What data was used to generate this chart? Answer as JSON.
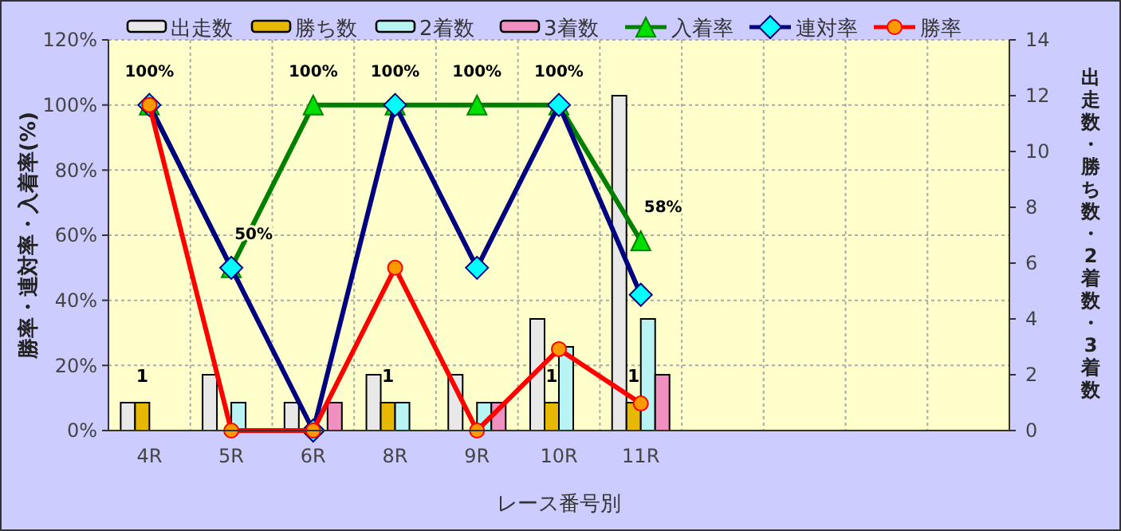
{
  "chart_data": {
    "type": "bar",
    "categories": [
      "4R",
      "5R",
      "6R",
      "8R",
      "9R",
      "10R",
      "11R",
      null,
      null,
      null,
      null
    ],
    "xlabel": "レース番号別",
    "ylabel": "勝率・連対率・入着率(%)",
    "y2label": "出走数・勝ち数・2着数・3着数",
    "ylim": [
      0,
      120
    ],
    "yticks": [
      {
        "value": 0,
        "label": "0%"
      },
      {
        "value": 20,
        "label": "20%"
      },
      {
        "value": 40,
        "label": "40%"
      },
      {
        "value": 60,
        "label": "60%"
      },
      {
        "value": 80,
        "label": "80%"
      },
      {
        "value": 100,
        "label": "100%"
      },
      {
        "value": 120,
        "label": "120%"
      }
    ],
    "y2lim": [
      0,
      14
    ],
    "y2ticks": [
      0,
      2,
      4,
      6,
      8,
      10,
      12,
      14
    ],
    "grid": true,
    "legend": "top",
    "series": [
      {
        "name": "出走数",
        "axis": "y2",
        "color": "#e8e8e8",
        "values": [
          1,
          2,
          1,
          2,
          2,
          4,
          12,
          null,
          null,
          null,
          null
        ]
      },
      {
        "name": "勝ち数",
        "axis": "y2",
        "color": "#e6b800",
        "values": [
          1,
          0,
          0,
          1,
          0,
          1,
          1,
          null,
          null,
          null,
          null
        ],
        "value_labels": [
          "1",
          null,
          null,
          "1",
          null,
          "1",
          "1",
          null,
          null,
          null,
          null
        ]
      },
      {
        "name": "2着数",
        "axis": "y2",
        "color": "#b8f4f4",
        "values": [
          0,
          1,
          0,
          1,
          1,
          3,
          4,
          null,
          null,
          null,
          null
        ]
      },
      {
        "name": "3着数",
        "axis": "y2",
        "color": "#f090c0",
        "values": [
          0,
          0,
          1,
          0,
          1,
          0,
          2,
          null,
          null,
          null,
          null
        ]
      },
      {
        "name": "入着率",
        "type": "line",
        "color": "#008000",
        "marker": "triangle",
        "values": [
          100,
          50,
          100,
          100,
          100,
          100,
          58.3,
          null,
          null,
          null,
          null
        ],
        "value_labels": [
          "100%",
          "50%",
          "100%",
          "100%",
          "100%",
          "100%",
          "58%",
          null,
          null,
          null,
          null
        ]
      },
      {
        "name": "連対率",
        "type": "line",
        "color": "#000080",
        "marker": "diamond",
        "values": [
          100,
          50,
          0,
          100,
          50,
          100,
          41.7,
          null,
          null,
          null,
          null
        ]
      },
      {
        "name": "勝率",
        "type": "line",
        "color": "#ff0000",
        "marker": "circle",
        "values": [
          100,
          0,
          0,
          50,
          0,
          25,
          8.3,
          null,
          null,
          null,
          null
        ]
      }
    ]
  }
}
